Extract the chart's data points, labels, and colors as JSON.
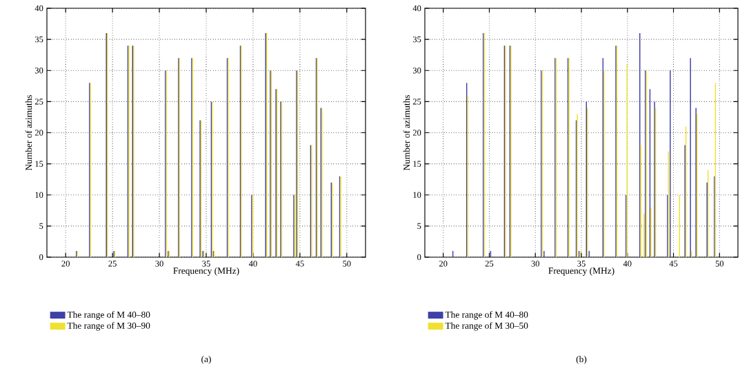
{
  "chart_data": [
    {
      "type": "bar",
      "xlabel": "Frequency (MHz)",
      "ylabel": "Number of azimuths",
      "annotations": [
        "(a)"
      ],
      "x": [
        21.2,
        22.6,
        24.4,
        25.2,
        26.7,
        27.2,
        30.7,
        31.0,
        32.1,
        33.5,
        34.4,
        34.7,
        35.6,
        35.8,
        37.3,
        38.7,
        39.9,
        41.4,
        41.9,
        42.5,
        43.0,
        44.4,
        44.7,
        46.2,
        46.8,
        47.3,
        48.4,
        49.3
      ],
      "series": [
        {
          "name": "The range of M 40–80",
          "color": "#3f3fa8",
          "values": [
            1,
            28,
            36,
            1,
            34,
            34,
            30,
            1,
            32,
            32,
            22,
            1,
            25,
            1,
            32,
            34,
            10,
            36,
            30,
            27,
            25,
            10,
            30,
            18,
            32,
            24,
            12,
            13
          ]
        },
        {
          "name": "The range of M 30–90",
          "color": "#f0e030",
          "values": [
            1,
            28,
            36,
            1,
            34,
            34,
            30,
            1,
            32,
            32,
            22,
            1,
            25,
            1,
            32,
            34,
            10,
            36,
            30,
            27,
            25,
            10,
            30,
            18,
            32,
            24,
            12,
            13
          ]
        }
      ],
      "xlim": [
        18,
        52
      ],
      "ylim": [
        0,
        40
      ],
      "xticks": [
        20,
        25,
        30,
        35,
        40,
        45,
        50
      ],
      "yticks": [
        0,
        5,
        10,
        15,
        20,
        25,
        30,
        35,
        40
      ],
      "grid": true,
      "legend": "bottom"
    },
    {
      "type": "bar",
      "xlabel": "Frequency (MHz)",
      "ylabel": "Number of azimuths",
      "annotations": [
        "(b)"
      ],
      "x": [
        21.1,
        22.6,
        24.4,
        25.2,
        26.7,
        27.3,
        30.7,
        31.0,
        32.2,
        33.6,
        34.5,
        34.8,
        35.6,
        35.9,
        37.4,
        38.8,
        39.9,
        41.4,
        41.75,
        42.0,
        42.5,
        43.0,
        44.4,
        44.7,
        45.6,
        46.3,
        46.9,
        47.5,
        48.7,
        49.5
      ],
      "series": [
        {
          "name": "The range of M 40–80",
          "color": "#3f3fa8",
          "values": [
            1,
            28,
            36,
            1,
            34,
            34,
            30,
            1,
            32,
            32,
            22,
            1,
            25,
            1,
            32,
            34,
            10,
            36,
            null,
            30,
            27,
            25,
            10,
            30,
            null,
            18,
            32,
            24,
            12,
            13
          ]
        },
        {
          "name": "The range of M 30–50",
          "color": "#f0e030",
          "values": [
            null,
            26,
            36,
            null,
            34,
            34,
            30,
            null,
            32,
            32,
            23,
            1,
            24,
            null,
            30,
            34,
            31,
            18,
            7,
            30,
            8,
            24,
            17,
            null,
            10,
            21,
            1,
            23,
            14,
            28
          ]
        }
      ],
      "xlim": [
        18,
        52
      ],
      "ylim": [
        0,
        40
      ],
      "xticks": [
        20,
        25,
        30,
        35,
        40,
        45,
        50
      ],
      "yticks": [
        0,
        5,
        10,
        15,
        20,
        25,
        30,
        35,
        40
      ],
      "grid": true,
      "legend": "bottom"
    }
  ]
}
